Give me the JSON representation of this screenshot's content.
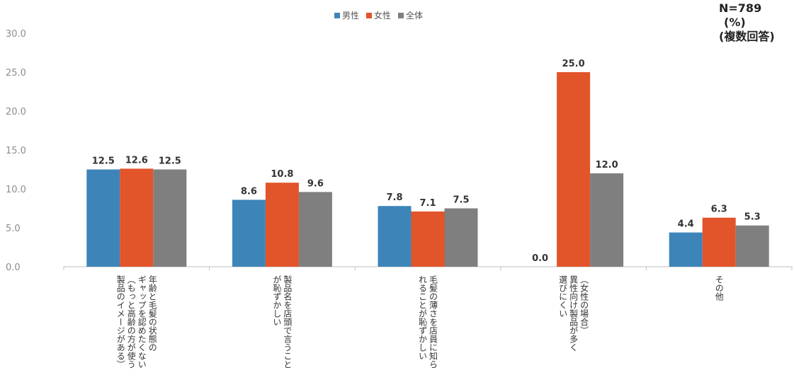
{
  "annotations": {
    "n_label": "N=789",
    "unit_label": "(%)",
    "note_label": "(複数回答)"
  },
  "colors": {
    "男性": "#3d85b9",
    "女性": "#e2542a",
    "全体": "#7f7f7f",
    "axis": "#bfbfbf",
    "tick_text": "#8c8c8c",
    "value_text": "#333333"
  },
  "chart_data": {
    "type": "bar",
    "title": "",
    "xlabel": "",
    "ylabel": "",
    "ylim": [
      0,
      30
    ],
    "yticks": [
      "0.0",
      "5.0",
      "10.0",
      "15.0",
      "20.0",
      "25.0",
      "30.0"
    ],
    "grid": false,
    "legend_position": "top-center",
    "categories": [
      [
        "年齢と毛髪の状態の",
        "ギャップを認めたくない",
        "（もっと高齢の方が使う",
        "製品のイメージがある）"
      ],
      [
        "製品名を店頭で言うこと",
        "が恥ずかしい"
      ],
      [
        "毛髪の薄さを店員に知ら",
        "れることが恥ずかしい"
      ],
      [
        "（女性の場合）",
        "異性向け製品が多く",
        "選びにくい"
      ],
      [
        "その他"
      ]
    ],
    "series": [
      {
        "name": "男性",
        "values": [
          12.5,
          8.6,
          7.8,
          0.0,
          4.4
        ]
      },
      {
        "name": "女性",
        "values": [
          12.6,
          10.8,
          7.1,
          25.0,
          6.3
        ]
      },
      {
        "name": "全体",
        "values": [
          12.5,
          9.6,
          7.5,
          12.0,
          5.3
        ]
      }
    ]
  }
}
